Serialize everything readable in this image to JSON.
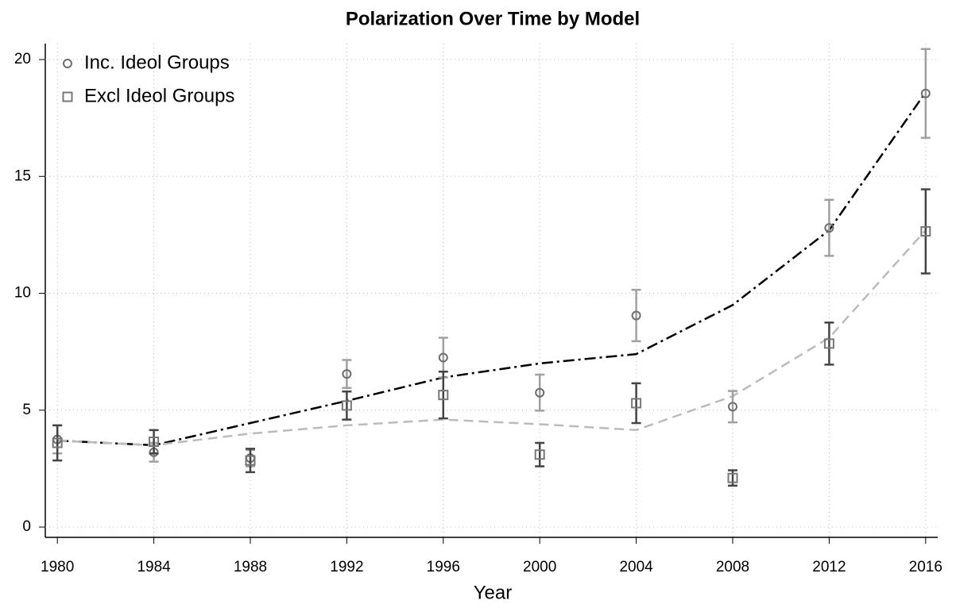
{
  "chart_data": {
    "type": "errorbar_line",
    "title": "Polarization Over Time by Model",
    "xlabel": "Year",
    "x": [
      1980,
      1984,
      1988,
      1992,
      1996,
      2000,
      2004,
      2008,
      2012,
      2016
    ],
    "xlim": [
      1979.5,
      2016.5
    ],
    "xticks": [
      1980,
      1984,
      1988,
      1992,
      1996,
      2000,
      2004,
      2008,
      2012,
      2016
    ],
    "ylim": [
      -0.44,
      20.68
    ],
    "yticks": [
      0,
      5,
      10,
      15,
      20
    ],
    "grid": true,
    "legend": "top-left",
    "series": [
      {
        "name": "Inc. Ideol Groups",
        "marker": "circle",
        "color": "#6e6e6e",
        "error_color": "#a0a0a0",
        "fit_color": "#000000",
        "fit_dash": "14,5,3,5",
        "values": [
          3.75,
          3.2,
          2.95,
          6.55,
          7.25,
          5.75,
          9.05,
          5.15,
          12.8,
          18.55
        ],
        "errors": [
          0.6,
          0.4,
          0.35,
          0.6,
          0.85,
          0.77,
          1.1,
          0.67,
          1.2,
          1.9
        ],
        "fit": [
          3.7,
          3.5,
          4.45,
          5.4,
          6.4,
          7.0,
          7.4,
          9.5,
          12.7,
          18.6
        ]
      },
      {
        "name": "Excl Ideol Groups",
        "marker": "square",
        "color": "#777777",
        "error_color": "#444444",
        "fit_color": "#bbbbbb",
        "fit_dash": "12,7",
        "values": [
          3.6,
          3.65,
          2.85,
          5.2,
          5.65,
          3.1,
          5.3,
          2.1,
          7.85,
          12.65
        ],
        "errors": [
          0.75,
          0.5,
          0.5,
          0.6,
          1.0,
          0.5,
          0.85,
          0.33,
          0.9,
          1.8
        ],
        "fit": [
          3.7,
          3.5,
          4.0,
          4.35,
          4.6,
          4.4,
          4.15,
          5.6,
          8.1,
          12.7
        ]
      }
    ]
  }
}
